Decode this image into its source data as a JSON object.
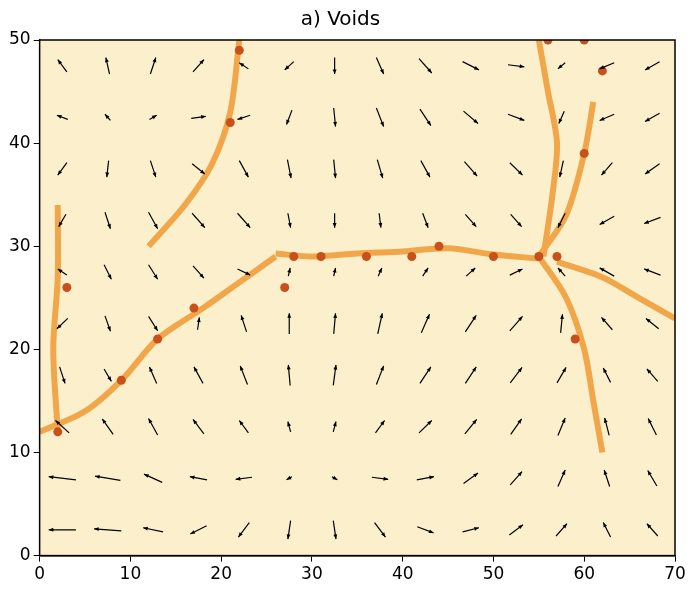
{
  "chart_data": {
    "type": "quiver",
    "title": "a) Voids",
    "xlim": [
      0,
      70
    ],
    "ylim": [
      0,
      50
    ],
    "xticks": [
      0,
      10,
      20,
      30,
      40,
      50,
      60,
      70
    ],
    "yticks": [
      0,
      10,
      20,
      30,
      40,
      50
    ],
    "grid": false,
    "series": [
      {
        "type": "line",
        "color": "#f2a64a",
        "x": [
          0,
          5,
          9,
          13,
          18,
          22,
          26
        ],
        "values": [
          12,
          14,
          17,
          21,
          24,
          26.5,
          29
        ]
      },
      {
        "type": "line",
        "color": "#f2a64a",
        "x": [
          26,
          30,
          35,
          40,
          45,
          50,
          55
        ],
        "values": [
          29.3,
          29,
          29.3,
          29.5,
          29.8,
          29.2,
          28.8
        ]
      },
      {
        "type": "line",
        "color": "#f2a64a",
        "x": [
          55,
          56,
          57,
          56.5,
          55.5
        ],
        "values": [
          50,
          45,
          40,
          35,
          29
        ]
      },
      {
        "type": "line",
        "color": "#f2a64a",
        "x": [
          55,
          58,
          60,
          61
        ],
        "values": [
          29,
          33,
          39,
          44
        ]
      },
      {
        "type": "line",
        "color": "#f2a64a",
        "x": [
          55,
          58,
          60,
          61,
          62
        ],
        "values": [
          29,
          25,
          20,
          15,
          10
        ]
      },
      {
        "type": "line",
        "color": "#f2a64a",
        "x": [
          57,
          62,
          66,
          70
        ],
        "values": [
          28.5,
          27,
          25,
          23
        ]
      },
      {
        "type": "line",
        "color": "#f2a64a",
        "x": [
          22,
          21,
          19,
          16,
          12
        ],
        "values": [
          50,
          43,
          38,
          34,
          30
        ]
      },
      {
        "type": "line",
        "color": "#f2a64a",
        "x": [
          2,
          1.5,
          2,
          2
        ],
        "values": [
          12,
          20,
          27,
          34
        ]
      },
      {
        "type": "scatter",
        "color": "#c8501a",
        "x": [
          9,
          21,
          22,
          28,
          31,
          36,
          44,
          50,
          55,
          57,
          60,
          59,
          2,
          17,
          13,
          27,
          3,
          41,
          62,
          56,
          60
        ],
        "values": [
          17,
          42,
          49,
          29,
          29,
          29,
          30,
          29,
          29,
          29,
          39,
          21,
          12,
          24,
          21,
          26,
          26,
          29,
          47,
          50,
          50
        ]
      },
      {
        "type": "quiver",
        "color": "#000000",
        "x": [
          2.5,
          7.5,
          12.5,
          17.5,
          22.5,
          27.5,
          32.5,
          37.5,
          42.5,
          47.5,
          52.5,
          57.5,
          62.5,
          67.5,
          2.5,
          7.5,
          12.5,
          17.5,
          22.5,
          27.5,
          32.5,
          37.5,
          42.5,
          47.5,
          52.5,
          57.5,
          62.5,
          67.5,
          2.5,
          7.5,
          12.5,
          17.5,
          22.5,
          27.5,
          32.5,
          37.5,
          42.5,
          47.5,
          52.5,
          57.5,
          62.5,
          67.5,
          2.5,
          7.5,
          12.5,
          17.5,
          22.5,
          27.5,
          32.5,
          37.5,
          42.5,
          47.5,
          52.5,
          57.5,
          62.5,
          67.5,
          2.5,
          7.5,
          12.5,
          17.5,
          22.5,
          27.5,
          32.5,
          37.5,
          42.5,
          47.5,
          52.5,
          57.5,
          62.5,
          67.5,
          2.5,
          7.5,
          12.5,
          17.5,
          22.5,
          27.5,
          32.5,
          37.5,
          42.5,
          47.5,
          52.5,
          57.5,
          62.5,
          67.5,
          2.5,
          7.5,
          12.5,
          17.5,
          22.5,
          27.5,
          32.5,
          37.5,
          42.5,
          47.5,
          52.5,
          57.5,
          62.5,
          67.5,
          2.5,
          7.5,
          12.5,
          17.5,
          22.5,
          27.5,
          32.5,
          37.5,
          42.5,
          47.5,
          52.5,
          57.5,
          62.5,
          67.5,
          2.5,
          7.5,
          12.5,
          17.5,
          22.5,
          27.5,
          32.5,
          37.5,
          42.5,
          47.5,
          52.5,
          57.5,
          62.5,
          67.5,
          2.5,
          7.5,
          12.5,
          17.5,
          22.5,
          27.5,
          32.5,
          37.5,
          42.5,
          47.5,
          52.5,
          57.5,
          62.5,
          67.5
        ],
        "values": [
          2.5,
          2.5,
          2.5,
          2.5,
          2.5,
          2.5,
          2.5,
          2.5,
          2.5,
          2.5,
          2.5,
          2.5,
          2.5,
          2.5,
          7.5,
          7.5,
          7.5,
          7.5,
          7.5,
          7.5,
          7.5,
          7.5,
          7.5,
          7.5,
          7.5,
          7.5,
          7.5,
          7.5,
          12.5,
          12.5,
          12.5,
          12.5,
          12.5,
          12.5,
          12.5,
          12.5,
          12.5,
          12.5,
          12.5,
          12.5,
          12.5,
          12.5,
          17.5,
          17.5,
          17.5,
          17.5,
          17.5,
          17.5,
          17.5,
          17.5,
          17.5,
          17.5,
          17.5,
          17.5,
          17.5,
          17.5,
          22.5,
          22.5,
          22.5,
          22.5,
          22.5,
          22.5,
          22.5,
          22.5,
          22.5,
          22.5,
          22.5,
          22.5,
          22.5,
          22.5,
          27.5,
          27.5,
          27.5,
          27.5,
          27.5,
          27.5,
          27.5,
          27.5,
          27.5,
          27.5,
          27.5,
          27.5,
          27.5,
          27.5,
          32.5,
          32.5,
          32.5,
          32.5,
          32.5,
          32.5,
          32.5,
          32.5,
          32.5,
          32.5,
          32.5,
          32.5,
          32.5,
          32.5,
          37.5,
          37.5,
          37.5,
          37.5,
          37.5,
          37.5,
          37.5,
          37.5,
          37.5,
          37.5,
          37.5,
          37.5,
          37.5,
          37.5,
          42.5,
          42.5,
          42.5,
          42.5,
          42.5,
          42.5,
          42.5,
          42.5,
          42.5,
          42.5,
          42.5,
          42.5,
          42.5,
          42.5,
          47.5,
          47.5,
          47.5,
          47.5,
          47.5,
          47.5,
          47.5,
          47.5,
          47.5,
          47.5,
          47.5,
          47.5,
          47.5,
          47.5
        ],
        "u": [
          -3,
          -3,
          -2.2,
          -1.8,
          -1.2,
          -0.3,
          0.3,
          1.2,
          1.8,
          1.8,
          1.5,
          1.2,
          -0.8,
          -1.2,
          -3,
          -2.8,
          -2,
          -1.9,
          -1.8,
          -0.6,
          0.6,
          1.8,
          1.9,
          1.6,
          1.3,
          0.8,
          -0.6,
          -1,
          -1.5,
          -1.2,
          -1,
          -1.2,
          -1,
          -0.3,
          0.3,
          1,
          1.4,
          1.3,
          1.2,
          0.8,
          -0.5,
          -0.9,
          0.6,
          0.8,
          -0.8,
          -1,
          -0.8,
          -0.2,
          0.3,
          0.8,
          1.2,
          1.2,
          1.3,
          1,
          -0.8,
          -1.2,
          -1.2,
          0.6,
          1,
          0.2,
          -0.6,
          0,
          0.2,
          0.5,
          0.9,
          1.2,
          1.4,
          0.2,
          -1.2,
          -1.4,
          -1,
          0.8,
          1,
          1.2,
          1.4,
          0.2,
          0.2,
          0.4,
          0.6,
          1,
          1.4,
          -0.8,
          -1.6,
          -1.8,
          -0.8,
          0.6,
          1,
          1.4,
          1.4,
          0.3,
          0,
          0.2,
          0.6,
          1.2,
          1.2,
          -0.8,
          -1.6,
          -1.8,
          -1,
          -0.2,
          0.6,
          1.4,
          1,
          0.4,
          0.2,
          0.6,
          1,
          1.4,
          1.4,
          -0.4,
          -1.2,
          -1.6,
          -1.2,
          -0.6,
          0.8,
          1.6,
          -1.4,
          -0.6,
          0.2,
          0.8,
          1.2,
          1.6,
          1.8,
          -0.6,
          -1.6,
          -1.6,
          -1,
          -0.4,
          0.6,
          1.2,
          -1,
          -1,
          0,
          0.8,
          1.4,
          1.8,
          1.8,
          -0.8,
          -1.6,
          -1.6
        ],
        "v": [
          0,
          0.2,
          0.4,
          -0.8,
          -1.4,
          -1.8,
          -1.8,
          -1.4,
          -0.6,
          0.4,
          1,
          1.2,
          1.4,
          1.2,
          0.3,
          0.4,
          0.8,
          0.3,
          -0.2,
          -0.3,
          -0.3,
          -0.2,
          0.3,
          1,
          1.3,
          1.6,
          1.6,
          1.5,
          1.2,
          1.5,
          1.6,
          1.4,
          1.2,
          1,
          1,
          1.2,
          1.2,
          1.4,
          1.5,
          1.7,
          1.7,
          1.6,
          -1.6,
          -1.2,
          1.6,
          1.6,
          1.8,
          2,
          2,
          1.8,
          1.6,
          1.6,
          1.5,
          1.5,
          1.4,
          1.2,
          -1,
          -1.5,
          -1.4,
          1.2,
          1.6,
          2,
          2,
          2,
          1.8,
          1.6,
          1.4,
          1.8,
          1.2,
          1,
          0.6,
          -1.4,
          -1.4,
          -1.2,
          -0.6,
          0.8,
          0.8,
          0.8,
          0.8,
          0.8,
          0.6,
          0.8,
          0.8,
          0.6,
          -1.2,
          -1.6,
          -1.6,
          -1.4,
          -1.4,
          -1.4,
          -1.4,
          -1.4,
          -1.4,
          -1.2,
          -1.2,
          -1.4,
          -0.8,
          -0.6,
          -1.2,
          -1.6,
          -1.6,
          -1,
          -1.6,
          -1.8,
          -1.8,
          -1.8,
          -1.6,
          -1.4,
          -1.2,
          -1.6,
          -1.2,
          -1,
          0.4,
          0.6,
          0.4,
          0.2,
          -0.4,
          -1.4,
          -1.8,
          -1.8,
          -1.6,
          -1.2,
          -0.6,
          -1.2,
          -0.6,
          -0.8,
          1.2,
          1.6,
          1.6,
          1.2,
          0.6,
          -0.8,
          -1.6,
          -1.6,
          -1.4,
          -0.8,
          -0.2,
          -0.6,
          -0.6,
          -0.8
        ]
      }
    ]
  }
}
